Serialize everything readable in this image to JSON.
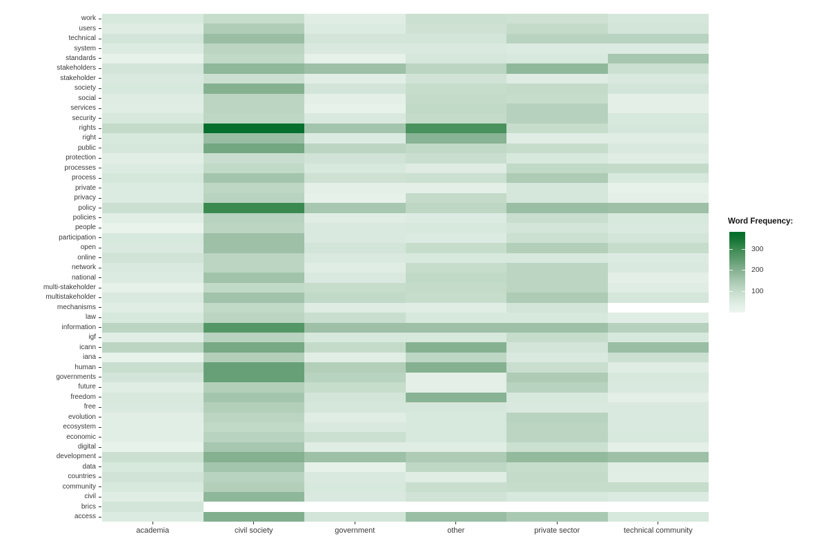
{
  "chart_data": {
    "type": "heatmap",
    "title": "",
    "xlabel": "",
    "ylabel": "",
    "grid": false,
    "x_categories": [
      "academia",
      "civil society",
      "government",
      "other",
      "private sector",
      "technical community"
    ],
    "y_categories": [
      "work",
      "users",
      "technical",
      "system",
      "standards",
      "stakeholders",
      "stakeholder",
      "society",
      "social",
      "services",
      "security",
      "rights",
      "right",
      "public",
      "protection",
      "processes",
      "process",
      "private",
      "privacy",
      "policy",
      "policies",
      "people",
      "participation",
      "open",
      "online",
      "network",
      "national",
      "multi-stakeholder",
      "multistakeholder",
      "mechanisms",
      "law",
      "information",
      "igf",
      "icann",
      "iana",
      "human",
      "governments",
      "future",
      "freedom",
      "free",
      "evolution",
      "ecosystem",
      "economic",
      "digital",
      "development",
      "data",
      "countries",
      "community",
      "civil",
      "brics",
      "access"
    ],
    "values": [
      [
        60,
        95,
        40,
        85,
        80,
        65
      ],
      [
        45,
        135,
        50,
        80,
        100,
        70
      ],
      [
        70,
        170,
        70,
        70,
        120,
        120
      ],
      [
        50,
        115,
        55,
        55,
        50,
        50
      ],
      [
        20,
        105,
        25,
        65,
        60,
        150
      ],
      [
        70,
        185,
        165,
        115,
        185,
        85
      ],
      [
        55,
        85,
        35,
        75,
        45,
        55
      ],
      [
        60,
        200,
        70,
        95,
        100,
        70
      ],
      [
        45,
        115,
        30,
        100,
        95,
        30
      ],
      [
        40,
        115,
        20,
        105,
        125,
        30
      ],
      [
        60,
        110,
        55,
        100,
        125,
        60
      ],
      [
        100,
        370,
        155,
        280,
        95,
        65
      ],
      [
        60,
        170,
        50,
        195,
        40,
        40
      ],
      [
        65,
        225,
        115,
        105,
        95,
        55
      ],
      [
        35,
        90,
        75,
        90,
        60,
        40
      ],
      [
        50,
        105,
        60,
        45,
        105,
        100
      ],
      [
        65,
        155,
        80,
        85,
        140,
        60
      ],
      [
        50,
        110,
        30,
        30,
        65,
        20
      ],
      [
        50,
        120,
        25,
        100,
        65,
        30
      ],
      [
        85,
        300,
        150,
        110,
        170,
        165
      ],
      [
        35,
        120,
        40,
        50,
        90,
        60
      ],
      [
        15,
        115,
        55,
        60,
        70,
        55
      ],
      [
        60,
        165,
        55,
        50,
        85,
        70
      ],
      [
        55,
        165,
        70,
        95,
        130,
        95
      ],
      [
        75,
        115,
        55,
        60,
        60,
        50
      ],
      [
        55,
        115,
        40,
        95,
        115,
        55
      ],
      [
        50,
        160,
        55,
        105,
        115,
        30
      ],
      [
        25,
        105,
        95,
        100,
        115,
        40
      ],
      [
        55,
        160,
        105,
        95,
        140,
        65
      ],
      [
        40,
        105,
        45,
        40,
        70,
        null
      ],
      [
        60,
        115,
        90,
        60,
        60,
        40
      ],
      [
        115,
        265,
        165,
        165,
        165,
        125
      ],
      [
        35,
        120,
        60,
        60,
        95,
        60
      ],
      [
        115,
        220,
        100,
        200,
        70,
        170
      ],
      [
        20,
        130,
        35,
        110,
        55,
        85
      ],
      [
        90,
        240,
        130,
        200,
        90,
        40
      ],
      [
        70,
        240,
        120,
        30,
        140,
        60
      ],
      [
        40,
        130,
        95,
        30,
        120,
        55
      ],
      [
        60,
        155,
        70,
        195,
        60,
        30
      ],
      [
        55,
        130,
        65,
        65,
        55,
        55
      ],
      [
        35,
        115,
        40,
        60,
        120,
        55
      ],
      [
        35,
        105,
        55,
        60,
        115,
        55
      ],
      [
        35,
        120,
        85,
        60,
        115,
        60
      ],
      [
        20,
        150,
        40,
        40,
        85,
        30
      ],
      [
        85,
        200,
        165,
        140,
        180,
        165
      ],
      [
        60,
        155,
        25,
        110,
        95,
        40
      ],
      [
        75,
        120,
        55,
        40,
        100,
        35
      ],
      [
        60,
        130,
        60,
        90,
        95,
        95
      ],
      [
        40,
        185,
        55,
        75,
        60,
        50
      ],
      [
        70,
        null,
        null,
        null,
        null,
        null
      ],
      [
        50,
        205,
        70,
        170,
        145,
        60
      ]
    ],
    "legend": {
      "title": "Word Frequency:",
      "ticks": [
        100,
        200,
        300
      ],
      "domain": [
        0,
        380
      ],
      "position": "right"
    },
    "color_scale": {
      "missing": "#ffffff",
      "stops": [
        [
          0,
          "#eef6f1"
        ],
        [
          50,
          "#dcebe1"
        ],
        [
          100,
          "#c4dbca"
        ],
        [
          150,
          "#a7c7b0"
        ],
        [
          200,
          "#85b191"
        ],
        [
          250,
          "#5f9c70"
        ],
        [
          300,
          "#3a8a50"
        ],
        [
          350,
          "#117232"
        ],
        [
          380,
          "#006d2c"
        ]
      ]
    }
  }
}
